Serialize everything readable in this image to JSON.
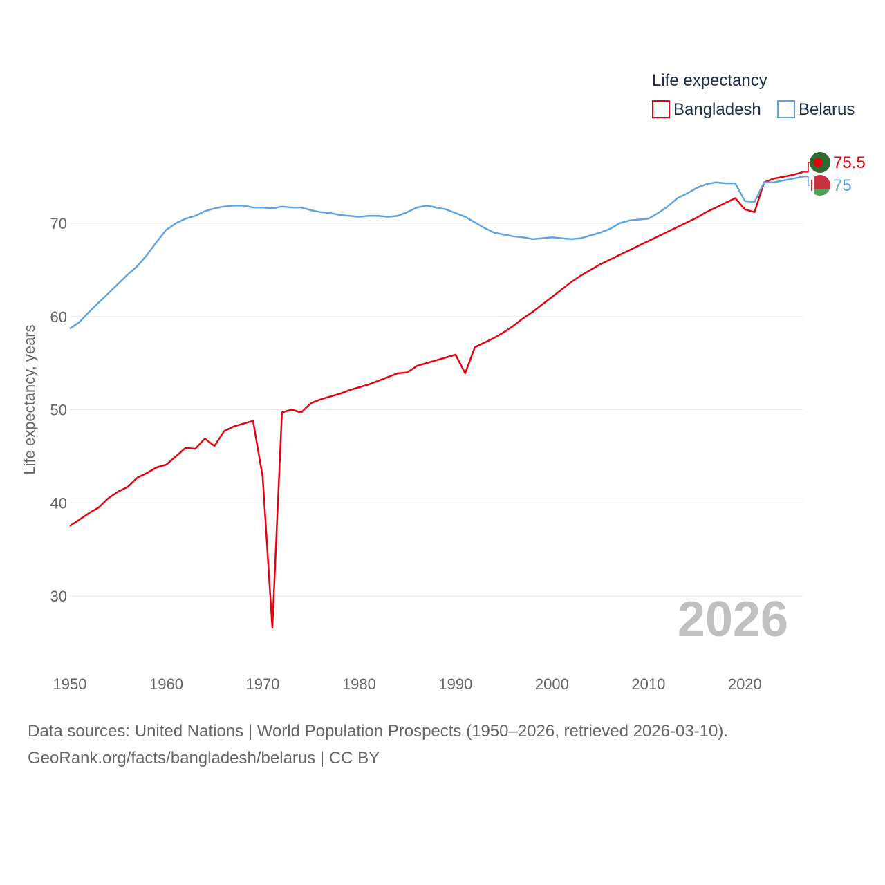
{
  "chart_data": {
    "type": "line",
    "title": "Life expectancy",
    "xlabel": "",
    "ylabel": "Life expectancy, years",
    "xlim": [
      1950,
      2026
    ],
    "ylim": [
      24,
      78
    ],
    "xticks": [
      1950,
      1960,
      1970,
      1980,
      1990,
      2000,
      2010,
      2020
    ],
    "yticks": [
      30,
      40,
      50,
      60,
      70
    ],
    "current_year": "2026",
    "x": [
      1950,
      1951,
      1952,
      1953,
      1954,
      1955,
      1956,
      1957,
      1958,
      1959,
      1960,
      1961,
      1962,
      1963,
      1964,
      1965,
      1966,
      1967,
      1968,
      1969,
      1970,
      1971,
      1972,
      1973,
      1974,
      1975,
      1976,
      1977,
      1978,
      1979,
      1980,
      1981,
      1982,
      1983,
      1984,
      1985,
      1986,
      1987,
      1988,
      1989,
      1990,
      1991,
      1992,
      1993,
      1994,
      1995,
      1996,
      1997,
      1998,
      1999,
      2000,
      2001,
      2002,
      2003,
      2004,
      2005,
      2006,
      2007,
      2008,
      2009,
      2010,
      2011,
      2012,
      2013,
      2014,
      2015,
      2016,
      2017,
      2018,
      2019,
      2020,
      2021,
      2022,
      2023,
      2024,
      2025,
      2026
    ],
    "series": [
      {
        "name": "Bangladesh",
        "color": "#e8000d",
        "end_label": "75.5",
        "flag": "bangladesh-flag-icon",
        "values": [
          37.5,
          38.2,
          38.9,
          39.5,
          40.5,
          41.2,
          41.7,
          42.7,
          43.2,
          43.8,
          44.1,
          45.0,
          45.9,
          45.8,
          46.9,
          46.1,
          47.7,
          48.2,
          48.5,
          48.8,
          42.8,
          26.6,
          49.7,
          50.0,
          49.7,
          50.7,
          51.1,
          51.4,
          51.7,
          52.1,
          52.4,
          52.7,
          53.1,
          53.5,
          53.9,
          54.0,
          54.7,
          55.0,
          55.3,
          55.6,
          55.9,
          53.9,
          56.7,
          57.2,
          57.7,
          58.3,
          59.0,
          59.8,
          60.5,
          61.3,
          62.1,
          62.9,
          63.7,
          64.4,
          65.0,
          65.6,
          66.1,
          66.6,
          67.1,
          67.6,
          68.1,
          68.6,
          69.1,
          69.6,
          70.1,
          70.6,
          71.2,
          71.7,
          72.2,
          72.7,
          71.5,
          71.2,
          74.4,
          74.8,
          75.0,
          75.2,
          75.5
        ]
      },
      {
        "name": "Belarus",
        "color": "#5fa3e0",
        "end_label": "75",
        "flag": "belarus-flag-icon",
        "values": [
          58.7,
          59.4,
          60.5,
          61.5,
          62.5,
          63.5,
          64.5,
          65.4,
          66.6,
          68.0,
          69.3,
          70.0,
          70.5,
          70.8,
          71.3,
          71.6,
          71.8,
          71.9,
          71.9,
          71.7,
          71.7,
          71.6,
          71.8,
          71.7,
          71.7,
          71.4,
          71.2,
          71.1,
          70.9,
          70.8,
          70.7,
          70.8,
          70.8,
          70.7,
          70.8,
          71.2,
          71.7,
          71.9,
          71.7,
          71.5,
          71.1,
          70.7,
          70.1,
          69.5,
          69.0,
          68.8,
          68.6,
          68.5,
          68.3,
          68.4,
          68.5,
          68.4,
          68.3,
          68.4,
          68.7,
          69.0,
          69.4,
          70.0,
          70.3,
          70.4,
          70.5,
          71.1,
          71.8,
          72.7,
          73.2,
          73.8,
          74.2,
          74.4,
          74.3,
          74.3,
          72.4,
          72.3,
          74.4,
          74.4,
          74.6,
          74.8,
          75.0
        ]
      }
    ],
    "legend": {
      "title": "Life expectancy",
      "placement": "top-right"
    }
  },
  "footer": {
    "line1": "Data sources: United Nations | World Population Prospects (1950–2026, retrieved 2026-03-10).",
    "line2": "GeoRank.org/facts/bangladesh/belarus | CC BY"
  }
}
